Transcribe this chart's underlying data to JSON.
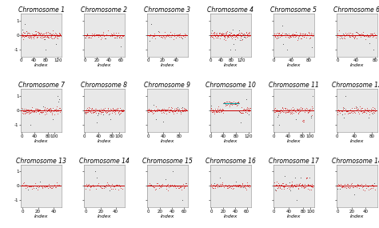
{
  "chromosomes": [
    1,
    2,
    3,
    4,
    5,
    6,
    7,
    8,
    9,
    10,
    11,
    12,
    13,
    14,
    15,
    16,
    17,
    18
  ],
  "chr_snp_counts": [
    130,
    65,
    55,
    155,
    90,
    82,
    120,
    115,
    100,
    125,
    110,
    90,
    48,
    50,
    65,
    65,
    108,
    55
  ],
  "ylim": [
    -1.5,
    1.5
  ],
  "yticks": [
    -1.0,
    0.0,
    1.0
  ],
  "dot_color_main": "#cc0000",
  "dot_color_black": "#111111",
  "dot_color_cyan": "#00aaaa",
  "line_color": "#cc0000",
  "bg_color": "#e8e8e8",
  "title_fontsize": 5.5,
  "xlabel_fontsize": 4.5,
  "tick_fontsize": 4.0,
  "nrows": 3,
  "ncols": 6,
  "seed": 123
}
